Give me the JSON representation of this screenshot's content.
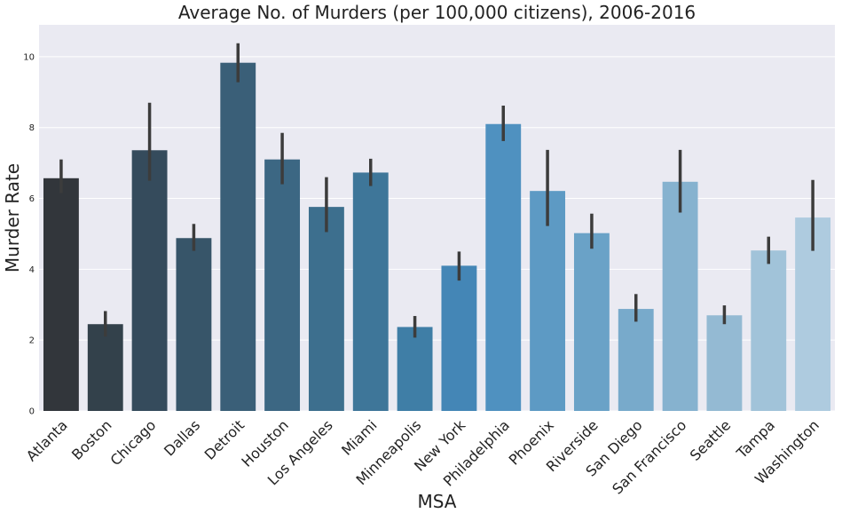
{
  "chart_data": {
    "type": "bar",
    "title": "Average No. of Murders (per 100,000 citizens), 2006-2016",
    "xlabel": "MSA",
    "ylabel": "Murder Rate",
    "ylim": [
      0,
      10.9
    ],
    "yticks": [
      "0",
      "2",
      "4",
      "6",
      "8",
      "10"
    ],
    "grid": true,
    "categories": [
      "Atlanta",
      "Boston",
      "Chicago",
      "Dallas",
      "Detroit",
      "Houston",
      "Los Angeles",
      "Miami",
      "Minneapolis",
      "New York",
      "Philadelphia",
      "Phoenix",
      "Riverside",
      "San Diego",
      "San Francisco",
      "Seattle",
      "Tampa",
      "Washington"
    ],
    "values": [
      6.57,
      2.45,
      7.36,
      4.88,
      9.83,
      7.1,
      5.76,
      6.73,
      2.37,
      4.1,
      8.1,
      6.21,
      5.02,
      2.88,
      6.47,
      2.7,
      4.53,
      5.46
    ],
    "error_low": [
      6.15,
      2.1,
      6.5,
      4.52,
      9.28,
      6.4,
      5.05,
      6.35,
      2.07,
      3.68,
      7.62,
      5.22,
      4.58,
      2.52,
      5.6,
      2.45,
      4.15,
      4.52
    ],
    "error_high": [
      7.1,
      2.82,
      8.7,
      5.28,
      10.38,
      7.85,
      6.6,
      7.12,
      2.68,
      4.5,
      8.62,
      7.37,
      5.57,
      3.3,
      7.37,
      2.98,
      4.92,
      6.52
    ],
    "colors": [
      "#32363b",
      "#33414b",
      "#354b5c",
      "#375569",
      "#3a5f78",
      "#3c6783",
      "#3d6f8e",
      "#3e7699",
      "#3f7ea6",
      "#4486b6",
      "#4f91c0",
      "#5d9ac4",
      "#6aa2c7",
      "#78aacb",
      "#86b2cf",
      "#94bad3",
      "#a1c3d9",
      "#aecbdf"
    ],
    "background": "#eaeaf2",
    "grid_color": "#ffffff",
    "error_color": "#3c3c3c"
  }
}
